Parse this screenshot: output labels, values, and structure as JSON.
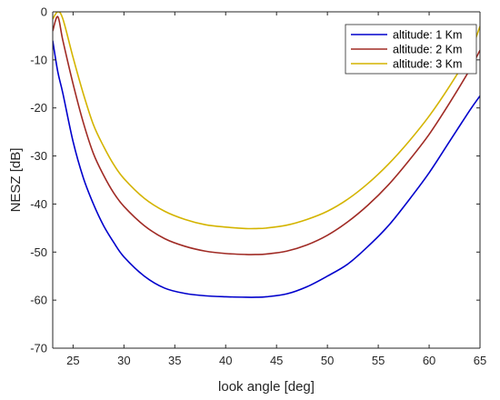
{
  "chart_data": {
    "type": "line",
    "title": "",
    "xlabel": "look angle [deg]",
    "ylabel": "NESZ [dB]",
    "xlim": [
      23,
      65
    ],
    "ylim": [
      -70,
      0
    ],
    "xticks": [
      25,
      30,
      35,
      40,
      45,
      50,
      55,
      60,
      65
    ],
    "yticks": [
      0,
      -10,
      -20,
      -30,
      -40,
      -50,
      -60,
      -70
    ],
    "xtick_labels": [
      "25",
      "30",
      "35",
      "40",
      "45",
      "50",
      "55",
      "60",
      "65"
    ],
    "ytick_labels": [
      "0",
      "-10",
      "-20",
      "-30",
      "-40",
      "-50",
      "-60",
      "-70"
    ],
    "grid": false,
    "legend_position": "top-right",
    "x": [
      23,
      23.5,
      24,
      25,
      26,
      27,
      28,
      29,
      30,
      32,
      34,
      36,
      38,
      40,
      42,
      43,
      44,
      46,
      48,
      50,
      52,
      54,
      56,
      58,
      60,
      62,
      64,
      65
    ],
    "series": [
      {
        "name": "altitude: 1 Km",
        "color": "#0000cc",
        "values": [
          -6,
          -12.5,
          -17,
          -27,
          -34.5,
          -40,
          -44.5,
          -48,
          -51,
          -55,
          -57.5,
          -58.6,
          -59.1,
          -59.3,
          -59.4,
          -59.4,
          -59.3,
          -58.7,
          -57.2,
          -55,
          -52.5,
          -48.8,
          -44.5,
          -39.2,
          -33.5,
          -27,
          -20.5,
          -17.5
        ]
      },
      {
        "name": "altitude: 2 Km",
        "color": "#a02b25",
        "values": [
          -4,
          -1,
          -6,
          -15,
          -23,
          -29.5,
          -34,
          -37.7,
          -40.5,
          -44.5,
          -47.2,
          -48.8,
          -49.8,
          -50.3,
          -50.5,
          -50.5,
          -50.4,
          -49.8,
          -48.5,
          -46.5,
          -43.7,
          -40.2,
          -36,
          -31,
          -25.5,
          -19,
          -12,
          -8
        ]
      },
      {
        "name": "altitude: 3 Km",
        "color": "#d4b400",
        "values": [
          -1.5,
          0,
          -1.5,
          -9.5,
          -17,
          -23.5,
          -28,
          -31.8,
          -34.7,
          -38.8,
          -41.5,
          -43.2,
          -44.3,
          -44.8,
          -45.1,
          -45.1,
          -45,
          -44.4,
          -43.2,
          -41.5,
          -39,
          -35.7,
          -31.7,
          -27,
          -21.7,
          -15.5,
          -8.5,
          -3
        ]
      }
    ]
  }
}
